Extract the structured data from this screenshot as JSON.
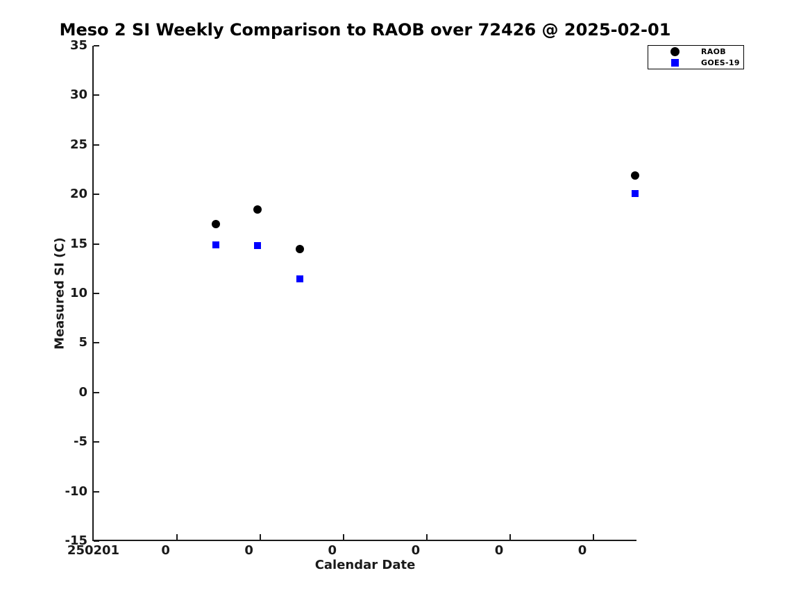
{
  "chart_data": {
    "type": "scatter",
    "title": "Meso 2 SI Weekly Comparison to RAOB over 72426 @ 2025-02-01",
    "xlabel": "Calendar Date",
    "ylabel": "Measured SI (C)",
    "ylim": [
      -15,
      35
    ],
    "y_ticks": [
      35,
      30,
      25,
      20,
      15,
      10,
      5,
      0,
      -5,
      -10,
      -15
    ],
    "xlim_days": [
      0,
      6.52
    ],
    "x_ticks": [
      {
        "day": 0,
        "label": "250201",
        "has_mark": false
      },
      {
        "day": 1,
        "label": "0",
        "has_mark": true
      },
      {
        "day": 2,
        "label": "0",
        "has_mark": true
      },
      {
        "day": 3,
        "label": "0",
        "has_mark": true
      },
      {
        "day": 4,
        "label": "0",
        "has_mark": true
      },
      {
        "day": 5,
        "label": "0",
        "has_mark": true
      },
      {
        "day": 6,
        "label": "0",
        "has_mark": true
      }
    ],
    "grid": false,
    "legend_position": "top-right",
    "series": [
      {
        "name": "RAOB",
        "marker": "circle",
        "color": "#000000",
        "points": [
          {
            "day": 1.47,
            "value": 17.0
          },
          {
            "day": 1.97,
            "value": 18.5
          },
          {
            "day": 2.48,
            "value": 14.5
          },
          {
            "day": 6.5,
            "value": 21.9
          }
        ]
      },
      {
        "name": "GOES-19",
        "marker": "square",
        "color": "#0000ff",
        "points": [
          {
            "day": 1.47,
            "value": 14.9
          },
          {
            "day": 1.97,
            "value": 14.8
          },
          {
            "day": 2.48,
            "value": 11.5
          },
          {
            "day": 6.5,
            "value": 20.1
          }
        ]
      }
    ]
  }
}
